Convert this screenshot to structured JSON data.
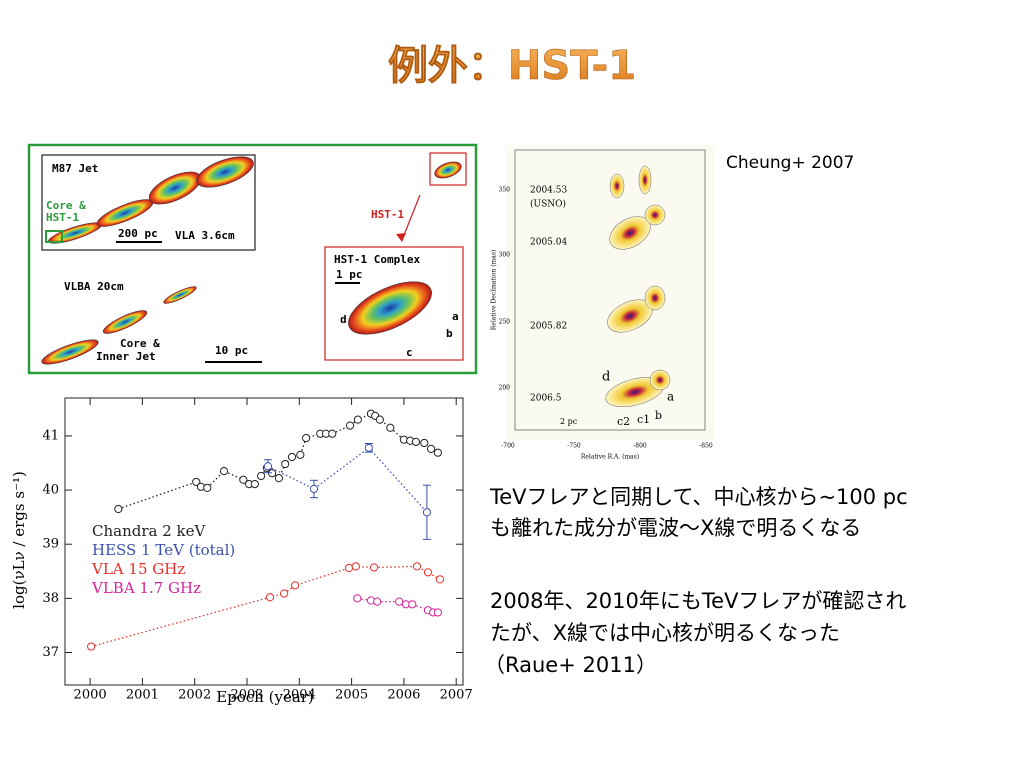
{
  "title": "例外：HST-1",
  "jet_image": {
    "panel_title": "M87 Jet",
    "core_label": [
      "Core &",
      "HST-1"
    ],
    "scale_200": "200 pc",
    "vla_label": "VLA 3.6cm",
    "hst_label": "HST-1",
    "vlba_label": "VLBA 20cm",
    "complex_title": "HST-1 Complex",
    "scale_1": "1 pc",
    "components": [
      "a",
      "b",
      "c",
      "d"
    ],
    "inner_label": [
      "Core &",
      "Inner Jet"
    ],
    "scale_10": "10 pc"
  },
  "vlbi_image": {
    "citation": "Cheung+ 2007",
    "epochs": [
      "2004.53",
      "2005.04",
      "2005.82",
      "2006.5"
    ],
    "observatory": "(USNO)",
    "xlabel": "Relative R.A. (mas)",
    "ylabel": "Relative Declination (mas)",
    "xticks": [
      -700,
      -750,
      -800,
      -850
    ],
    "yticks": [
      350,
      300,
      250,
      200
    ],
    "scale": "2 pc",
    "components": [
      "d",
      "a",
      "c2",
      "c1",
      "b"
    ]
  },
  "text": {
    "paragraph1": [
      "TeVフレアと同期して、中心核から~100 pc",
      "も離れた成分が電波～X線で明るくなる"
    ],
    "paragraph2": [
      "2008年、2010年にもTeVフレアが確認され",
      "たが、X線では中心核が明るくなった",
      "（Raue+ 2011）"
    ]
  },
  "chart_data": {
    "type": "scatter",
    "xlabel": "Epoch (year)",
    "ylabel": "log(νLν / ergs s⁻¹)",
    "xlim": [
      1999.52,
      2007.13
    ],
    "ylim": [
      36.4,
      41.7
    ],
    "xticks": [
      2000,
      2001,
      2002,
      2003,
      2004,
      2005,
      2006,
      2007
    ],
    "yticks": [
      37,
      38,
      39,
      40,
      41
    ],
    "series": [
      {
        "name": "Chandra 2 keV",
        "color": "#222222",
        "x": [
          2000.54,
          2002.03,
          2002.12,
          2002.24,
          2002.56,
          2002.93,
          2003.04,
          2003.15,
          2003.27,
          2003.38,
          2003.48,
          2003.61,
          2003.73,
          2003.86,
          2004.02,
          2004.13,
          2004.4,
          2004.51,
          2004.63,
          2004.97,
          2005.12,
          2005.37,
          2005.45,
          2005.54,
          2005.74,
          2006.0,
          2006.12,
          2006.23,
          2006.39,
          2006.52,
          2006.65
        ],
        "values": [
          39.65,
          40.15,
          40.06,
          40.04,
          40.35,
          40.19,
          40.11,
          40.11,
          40.26,
          40.41,
          40.31,
          40.22,
          40.48,
          40.61,
          40.65,
          40.96,
          41.04,
          41.04,
          41.04,
          41.19,
          41.3,
          41.41,
          41.37,
          41.3,
          41.15,
          40.93,
          40.91,
          40.89,
          40.87,
          40.76,
          40.69
        ]
      },
      {
        "name": "HESS 1 TeV (total)",
        "color": "#3a4fb0",
        "x": [
          2003.4,
          2004.28,
          2005.33,
          2006.44
        ],
        "values": [
          40.44,
          40.02,
          40.78,
          39.59
        ],
        "errors": [
          0.12,
          0.16,
          0.08,
          0.5
        ]
      },
      {
        "name": "VLA 15 GHz",
        "color": "#e8302a",
        "x": [
          2000.02,
          2003.44,
          2003.71,
          2003.92,
          2004.95,
          2005.08,
          2005.43,
          2006.25,
          2006.46,
          2006.69
        ],
        "values": [
          37.11,
          38.02,
          38.09,
          38.24,
          38.56,
          38.59,
          38.57,
          38.59,
          38.48,
          38.35
        ]
      },
      {
        "name": "VLBA 1.7 GHz",
        "color": "#d6249a",
        "x": [
          2005.11,
          2005.37,
          2005.49,
          2005.91,
          2006.04,
          2006.16,
          2006.46,
          2006.56,
          2006.65
        ],
        "values": [
          38.0,
          37.96,
          37.94,
          37.94,
          37.89,
          37.89,
          37.78,
          37.74,
          37.74
        ]
      }
    ]
  }
}
